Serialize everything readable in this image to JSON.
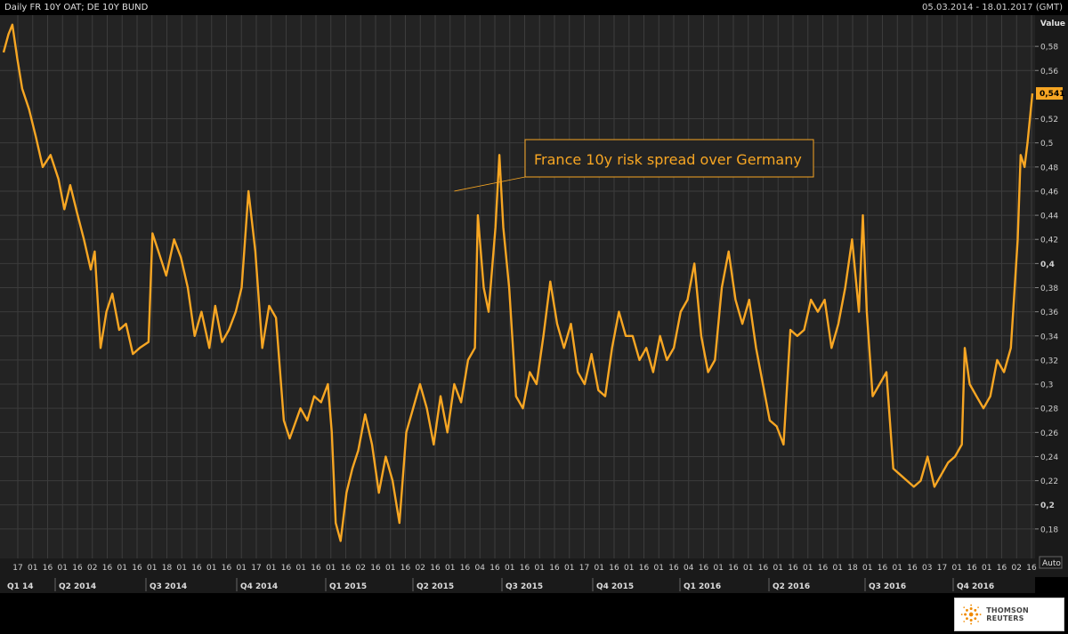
{
  "header": {
    "title": "Daily FR 10Y OAT; DE 10Y BUND",
    "date_range": "05.03.2014 - 18.01.2017 (GMT)"
  },
  "footer": {
    "brand": "THOMSON REUTERS"
  },
  "colors": {
    "background": "#232323",
    "grid": "#3c3c3c",
    "line": "#f7a623",
    "annotation_border": "#f7a623"
  },
  "chart_data": {
    "type": "line",
    "title": "Daily FR 10Y OAT; DE 10Y BUND",
    "ylabel": "Value",
    "ylim": [
      0.16,
      0.6
    ],
    "yticks": [
      0.18,
      0.2,
      0.22,
      0.24,
      0.26,
      0.28,
      0.3,
      0.32,
      0.34,
      0.36,
      0.38,
      0.4,
      0.42,
      0.44,
      0.46,
      0.48,
      0.5,
      0.52,
      0.56,
      0.58
    ],
    "ytick_labels": [
      "0,18",
      "0,2",
      "0,22",
      "0,24",
      "0,26",
      "0,28",
      "0,3",
      "0,32",
      "0,34",
      "0,36",
      "0,38",
      "0,4",
      "0,42",
      "0,44",
      "0,46",
      "0,48",
      "0,5",
      "0,52",
      "0,56",
      "0,58"
    ],
    "bold_ticks": [
      "0,2",
      "0,4"
    ],
    "last_value_label": "0,541",
    "last_value": 0.541,
    "scale_button": "Auto",
    "grid": true,
    "day_ticks": [
      "17",
      "01",
      "16",
      "01",
      "16",
      "02",
      "16",
      "01",
      "16",
      "01",
      "18",
      "01",
      "16",
      "01",
      "16",
      "01",
      "17",
      "01",
      "16",
      "01",
      "16",
      "01",
      "16",
      "02",
      "16",
      "01",
      "16",
      "02",
      "16",
      "01",
      "16",
      "04",
      "16",
      "01",
      "16",
      "01",
      "16",
      "01",
      "17",
      "01",
      "16",
      "01",
      "16",
      "01",
      "16",
      "04",
      "16",
      "01",
      "16",
      "01",
      "16",
      "01",
      "16",
      "01",
      "16",
      "01",
      "18",
      "01",
      "16",
      "01",
      "16",
      "03",
      "17",
      "01",
      "16",
      "01",
      "16",
      "02",
      "16"
    ],
    "quarter_labels": [
      "Q1 14",
      "Q2 2014",
      "Q3 2014",
      "Q4 2014",
      "Q1 2015",
      "Q2 2015",
      "Q3 2015",
      "Q4 2015",
      "Q1 2016",
      "Q2 2016",
      "Q3 2016",
      "Q4 2016"
    ],
    "start_date": "05.03.2014",
    "end_date": "18.01.2017",
    "annotation": {
      "text": "France 10y risk spread over Germany",
      "date": "2015-06-08",
      "value": 0.46
    },
    "series": [
      {
        "points": [
          [
            "2014-03-05",
            0.575
          ],
          [
            "2014-03-10",
            0.59
          ],
          [
            "2014-03-14",
            0.598
          ],
          [
            "2014-03-19",
            0.57
          ],
          [
            "2014-03-24",
            0.545
          ],
          [
            "2014-03-31",
            0.528
          ],
          [
            "2014-04-07",
            0.505
          ],
          [
            "2014-04-14",
            0.48
          ],
          [
            "2014-04-22",
            0.49
          ],
          [
            "2014-04-30",
            0.47
          ],
          [
            "2014-05-06",
            0.445
          ],
          [
            "2014-05-12",
            0.465
          ],
          [
            "2014-05-19",
            0.442
          ],
          [
            "2014-05-26",
            0.42
          ],
          [
            "2014-06-02",
            0.395
          ],
          [
            "2014-06-06",
            0.41
          ],
          [
            "2014-06-12",
            0.33
          ],
          [
            "2014-06-18",
            0.36
          ],
          [
            "2014-06-24",
            0.375
          ],
          [
            "2014-07-01",
            0.345
          ],
          [
            "2014-07-08",
            0.35
          ],
          [
            "2014-07-15",
            0.325
          ],
          [
            "2014-07-22",
            0.33
          ],
          [
            "2014-07-31",
            0.335
          ],
          [
            "2014-08-04",
            0.425
          ],
          [
            "2014-08-10",
            0.41
          ],
          [
            "2014-08-18",
            0.39
          ],
          [
            "2014-08-26",
            0.42
          ],
          [
            "2014-09-02",
            0.405
          ],
          [
            "2014-09-09",
            0.38
          ],
          [
            "2014-09-16",
            0.34
          ],
          [
            "2014-09-23",
            0.36
          ],
          [
            "2014-10-01",
            0.33
          ],
          [
            "2014-10-07",
            0.365
          ],
          [
            "2014-10-14",
            0.335
          ],
          [
            "2014-10-21",
            0.345
          ],
          [
            "2014-10-28",
            0.36
          ],
          [
            "2014-11-03",
            0.38
          ],
          [
            "2014-11-10",
            0.46
          ],
          [
            "2014-11-17",
            0.41
          ],
          [
            "2014-11-24",
            0.33
          ],
          [
            "2014-12-01",
            0.365
          ],
          [
            "2014-12-08",
            0.355
          ],
          [
            "2014-12-16",
            0.27
          ],
          [
            "2014-12-22",
            0.255
          ],
          [
            "2015-01-02",
            0.28
          ],
          [
            "2015-01-09",
            0.27
          ],
          [
            "2015-01-16",
            0.29
          ],
          [
            "2015-01-23",
            0.285
          ],
          [
            "2015-01-30",
            0.3
          ],
          [
            "2015-02-03",
            0.26
          ],
          [
            "2015-02-07",
            0.185
          ],
          [
            "2015-02-12",
            0.17
          ],
          [
            "2015-02-18",
            0.21
          ],
          [
            "2015-02-24",
            0.23
          ],
          [
            "2015-03-02",
            0.245
          ],
          [
            "2015-03-09",
            0.275
          ],
          [
            "2015-03-16",
            0.25
          ],
          [
            "2015-03-23",
            0.21
          ],
          [
            "2015-03-30",
            0.24
          ],
          [
            "2015-04-06",
            0.22
          ],
          [
            "2015-04-13",
            0.185
          ],
          [
            "2015-04-20",
            0.26
          ],
          [
            "2015-04-27",
            0.28
          ],
          [
            "2015-05-04",
            0.3
          ],
          [
            "2015-05-11",
            0.28
          ],
          [
            "2015-05-18",
            0.25
          ],
          [
            "2015-05-25",
            0.29
          ],
          [
            "2015-06-01",
            0.26
          ],
          [
            "2015-06-08",
            0.3
          ],
          [
            "2015-06-15",
            0.285
          ],
          [
            "2015-06-22",
            0.32
          ],
          [
            "2015-06-29",
            0.33
          ],
          [
            "2015-07-02",
            0.44
          ],
          [
            "2015-07-08",
            0.38
          ],
          [
            "2015-07-13",
            0.36
          ],
          [
            "2015-07-20",
            0.43
          ],
          [
            "2015-07-24",
            0.49
          ],
          [
            "2015-07-28",
            0.43
          ],
          [
            "2015-08-03",
            0.38
          ],
          [
            "2015-08-10",
            0.29
          ],
          [
            "2015-08-17",
            0.28
          ],
          [
            "2015-08-24",
            0.31
          ],
          [
            "2015-08-31",
            0.3
          ],
          [
            "2015-09-07",
            0.34
          ],
          [
            "2015-09-14",
            0.385
          ],
          [
            "2015-09-21",
            0.35
          ],
          [
            "2015-09-28",
            0.33
          ],
          [
            "2015-10-05",
            0.35
          ],
          [
            "2015-10-12",
            0.31
          ],
          [
            "2015-10-19",
            0.3
          ],
          [
            "2015-10-26",
            0.325
          ],
          [
            "2015-11-02",
            0.295
          ],
          [
            "2015-11-09",
            0.29
          ],
          [
            "2015-11-16",
            0.33
          ],
          [
            "2015-11-23",
            0.36
          ],
          [
            "2015-11-30",
            0.34
          ],
          [
            "2015-12-07",
            0.34
          ],
          [
            "2015-12-14",
            0.32
          ],
          [
            "2015-12-21",
            0.33
          ],
          [
            "2015-12-28",
            0.31
          ],
          [
            "2016-01-04",
            0.34
          ],
          [
            "2016-01-11",
            0.32
          ],
          [
            "2016-01-18",
            0.33
          ],
          [
            "2016-01-25",
            0.36
          ],
          [
            "2016-02-01",
            0.37
          ],
          [
            "2016-02-08",
            0.4
          ],
          [
            "2016-02-15",
            0.34
          ],
          [
            "2016-02-22",
            0.31
          ],
          [
            "2016-02-29",
            0.32
          ],
          [
            "2016-03-07",
            0.38
          ],
          [
            "2016-03-14",
            0.41
          ],
          [
            "2016-03-21",
            0.37
          ],
          [
            "2016-03-28",
            0.35
          ],
          [
            "2016-04-04",
            0.37
          ],
          [
            "2016-04-11",
            0.33
          ],
          [
            "2016-04-18",
            0.3
          ],
          [
            "2016-04-25",
            0.27
          ],
          [
            "2016-05-02",
            0.265
          ],
          [
            "2016-05-09",
            0.25
          ],
          [
            "2016-05-16",
            0.345
          ],
          [
            "2016-05-23",
            0.34
          ],
          [
            "2016-05-30",
            0.345
          ],
          [
            "2016-06-06",
            0.37
          ],
          [
            "2016-06-13",
            0.36
          ],
          [
            "2016-06-20",
            0.37
          ],
          [
            "2016-06-27",
            0.33
          ],
          [
            "2016-07-04",
            0.35
          ],
          [
            "2016-07-11",
            0.38
          ],
          [
            "2016-07-18",
            0.42
          ],
          [
            "2016-07-25",
            0.36
          ],
          [
            "2016-07-29",
            0.44
          ],
          [
            "2016-08-02",
            0.36
          ],
          [
            "2016-08-08",
            0.29
          ],
          [
            "2016-08-15",
            0.3
          ],
          [
            "2016-08-22",
            0.31
          ],
          [
            "2016-08-29",
            0.23
          ],
          [
            "2016-09-05",
            0.225
          ],
          [
            "2016-09-12",
            0.22
          ],
          [
            "2016-09-19",
            0.215
          ],
          [
            "2016-09-26",
            0.22
          ],
          [
            "2016-10-03",
            0.24
          ],
          [
            "2016-10-10",
            0.215
          ],
          [
            "2016-10-17",
            0.225
          ],
          [
            "2016-10-24",
            0.235
          ],
          [
            "2016-10-31",
            0.24
          ],
          [
            "2016-11-07",
            0.25
          ],
          [
            "2016-11-10",
            0.33
          ],
          [
            "2016-11-15",
            0.3
          ],
          [
            "2016-11-22",
            0.29
          ],
          [
            "2016-11-29",
            0.28
          ],
          [
            "2016-12-06",
            0.29
          ],
          [
            "2016-12-13",
            0.32
          ],
          [
            "2016-12-20",
            0.31
          ],
          [
            "2016-12-27",
            0.33
          ],
          [
            "2017-01-03",
            0.42
          ],
          [
            "2017-01-06",
            0.49
          ],
          [
            "2017-01-10",
            0.48
          ],
          [
            "2017-01-13",
            0.5
          ],
          [
            "2017-01-18",
            0.541
          ]
        ]
      }
    ]
  }
}
